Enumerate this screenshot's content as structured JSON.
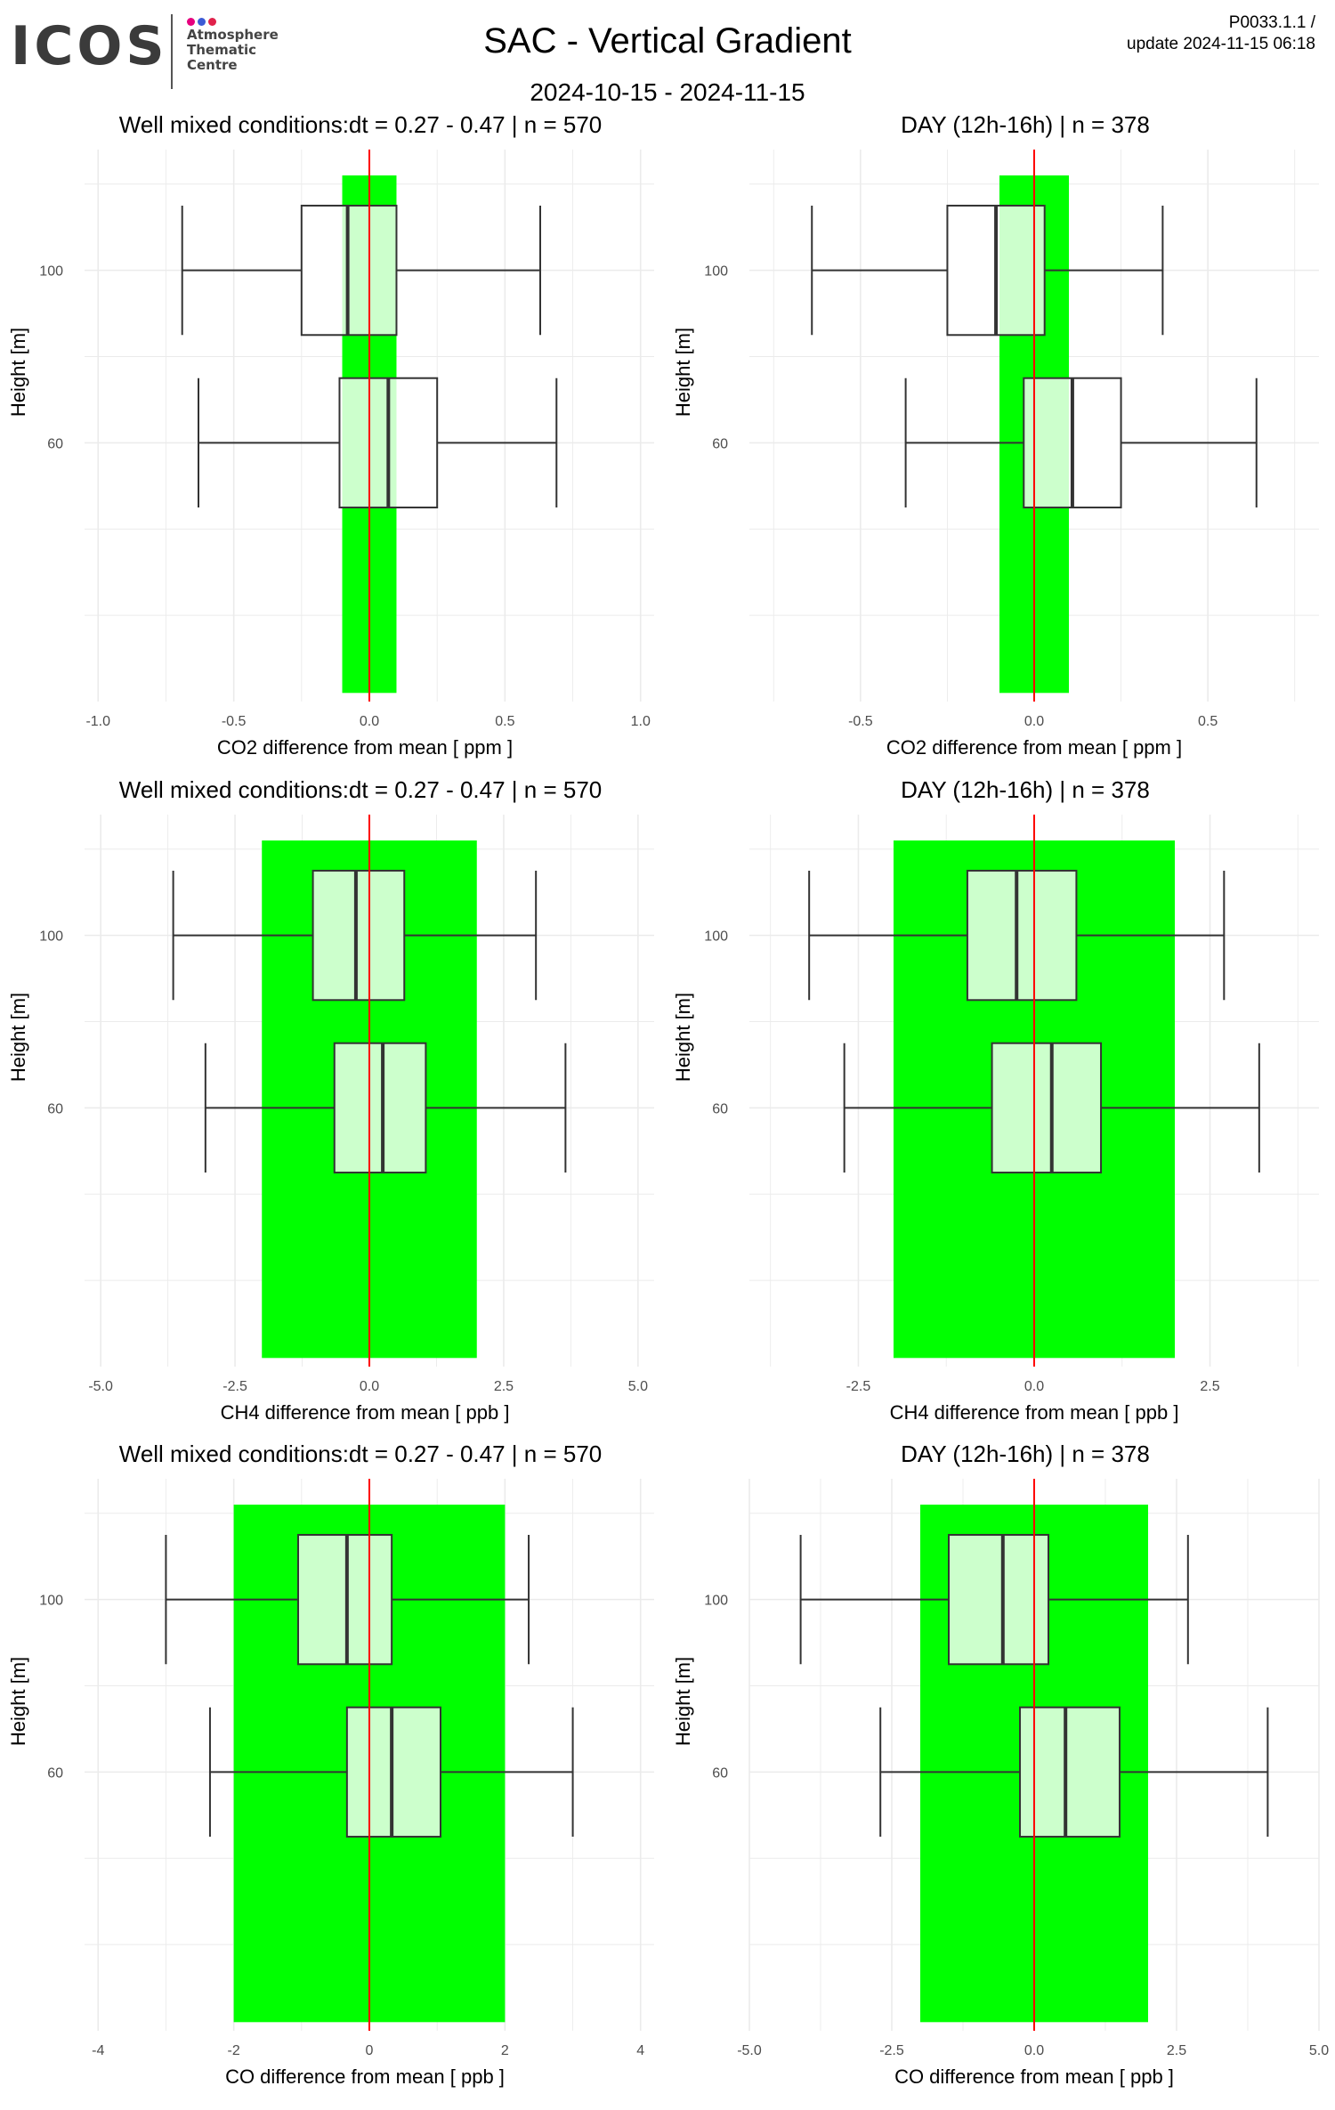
{
  "header": {
    "logo_word": "ICOS",
    "logo_lines": [
      "Atmosphere",
      "Thematic",
      "Centre"
    ],
    "logo_dot_colors": [
      "#e6007e",
      "#3c5bd6",
      "#e0224b"
    ],
    "title": "SAC - Vertical Gradient",
    "subtitle": "2024-10-15 - 2024-11-15",
    "ref_line1": "P0033.1.1 /",
    "ref_line2": "update  2024-11-15 06:18"
  },
  "colors": {
    "band": "#00ff00",
    "box_fill": "#ccffcc",
    "box_fill_outside": "#ffffff",
    "zero_line": "#ff0000",
    "grid": "#ebebeb",
    "whisker": "#333333"
  },
  "chart_data": [
    {
      "type": "boxplot",
      "orientation": "horizontal",
      "title": "Well mixed conditions:dt = 0.27 - 0.47 | n = 570",
      "xlabel": "CO2  difference from mean [ ppm ]",
      "ylabel": "Height [m]",
      "xlim": [
        -1.05,
        1.05
      ],
      "xticks": [
        -1.0,
        -0.5,
        0.0,
        0.5,
        1.0
      ],
      "xtick_labels": [
        "-1.0",
        "-0.5",
        "0.0",
        "0.5",
        "1.0"
      ],
      "yticks": [
        60,
        100
      ],
      "band": [
        -0.1,
        0.1
      ],
      "boxes": [
        {
          "height": 100,
          "min": -0.69,
          "q1": -0.25,
          "median": -0.08,
          "q3": 0.1,
          "max": 0.63
        },
        {
          "height": 60,
          "min": -0.63,
          "q1": -0.11,
          "median": 0.07,
          "q3": 0.25,
          "max": 0.69
        }
      ]
    },
    {
      "type": "boxplot",
      "orientation": "horizontal",
      "title": "DAY (12h-16h) | n = 378",
      "xlabel": "CO2  difference from mean [ ppm ]",
      "ylabel": "Height [m]",
      "xlim": [
        -0.82,
        0.82
      ],
      "xticks": [
        -0.5,
        0.0,
        0.5
      ],
      "xtick_labels": [
        "-0.5",
        "0.0",
        "0.5"
      ],
      "yticks": [
        60,
        100
      ],
      "band": [
        -0.1,
        0.1
      ],
      "boxes": [
        {
          "height": 100,
          "min": -0.64,
          "q1": -0.25,
          "median": -0.11,
          "q3": 0.03,
          "max": 0.37
        },
        {
          "height": 60,
          "min": -0.37,
          "q1": -0.03,
          "median": 0.11,
          "q3": 0.25,
          "max": 0.64
        }
      ]
    },
    {
      "type": "boxplot",
      "orientation": "horizontal",
      "title": "Well mixed conditions:dt = 0.27 - 0.47 | n = 570",
      "xlabel": "CH4  difference from mean [ ppb ]",
      "ylabel": "Height [m]",
      "xlim": [
        -5.3,
        5.3
      ],
      "xticks": [
        -5.0,
        -2.5,
        0.0,
        2.5,
        5.0
      ],
      "xtick_labels": [
        "-5.0",
        "-2.5",
        "0.0",
        "2.5",
        "5.0"
      ],
      "yticks": [
        60,
        100
      ],
      "band": [
        -2.0,
        2.0
      ],
      "boxes": [
        {
          "height": 100,
          "min": -3.65,
          "q1": -1.05,
          "median": -0.25,
          "q3": 0.65,
          "max": 3.1
        },
        {
          "height": 60,
          "min": -3.05,
          "q1": -0.65,
          "median": 0.25,
          "q3": 1.05,
          "max": 3.65
        }
      ]
    },
    {
      "type": "boxplot",
      "orientation": "horizontal",
      "title": "DAY (12h-16h) | n = 378",
      "xlabel": "CH4  difference from mean [ ppb ]",
      "ylabel": "Height [m]",
      "xlim": [
        -4.05,
        4.05
      ],
      "xticks": [
        -2.5,
        0.0,
        2.5
      ],
      "xtick_labels": [
        "-2.5",
        "0.0",
        "2.5"
      ],
      "yticks": [
        60,
        100
      ],
      "band": [
        -2.0,
        2.0
      ],
      "boxes": [
        {
          "height": 100,
          "min": -3.2,
          "q1": -0.95,
          "median": -0.25,
          "q3": 0.6,
          "max": 2.7
        },
        {
          "height": 60,
          "min": -2.7,
          "q1": -0.6,
          "median": 0.25,
          "q3": 0.95,
          "max": 3.2
        }
      ]
    },
    {
      "type": "boxplot",
      "orientation": "horizontal",
      "title": "Well mixed conditions:dt = 0.27 - 0.47 | n = 570",
      "xlabel": "CO  difference from mean [ ppb ]",
      "ylabel": "Height [m]",
      "xlim": [
        -4.2,
        4.2
      ],
      "xticks": [
        -4,
        -2,
        0,
        2,
        4
      ],
      "xtick_labels": [
        "-4",
        "-2",
        "0",
        "2",
        "4"
      ],
      "yticks": [
        60,
        100
      ],
      "band": [
        -2.0,
        2.0
      ],
      "boxes": [
        {
          "height": 100,
          "min": -3.0,
          "q1": -1.05,
          "median": -0.33,
          "q3": 0.33,
          "max": 2.35
        },
        {
          "height": 60,
          "min": -2.35,
          "q1": -0.33,
          "median": 0.33,
          "q3": 1.05,
          "max": 3.0
        }
      ]
    },
    {
      "type": "boxplot",
      "orientation": "horizontal",
      "title": "DAY (12h-16h) | n = 378",
      "xlabel": "CO  difference from mean [ ppb ]",
      "ylabel": "Height [m]",
      "xlim": [
        -5.0,
        5.0
      ],
      "xticks": [
        -5.0,
        -2.5,
        0.0,
        2.5,
        5.0
      ],
      "xtick_labels": [
        "-5.0",
        "-2.5",
        "0.0",
        "2.5",
        "5.0"
      ],
      "yticks": [
        60,
        100
      ],
      "band": [
        -2.0,
        2.0
      ],
      "boxes": [
        {
          "height": 100,
          "min": -4.1,
          "q1": -1.5,
          "median": -0.55,
          "q3": 0.25,
          "max": 2.7
        },
        {
          "height": 60,
          "min": -2.7,
          "q1": -0.25,
          "median": 0.55,
          "q3": 1.5,
          "max": 4.1
        }
      ]
    }
  ]
}
